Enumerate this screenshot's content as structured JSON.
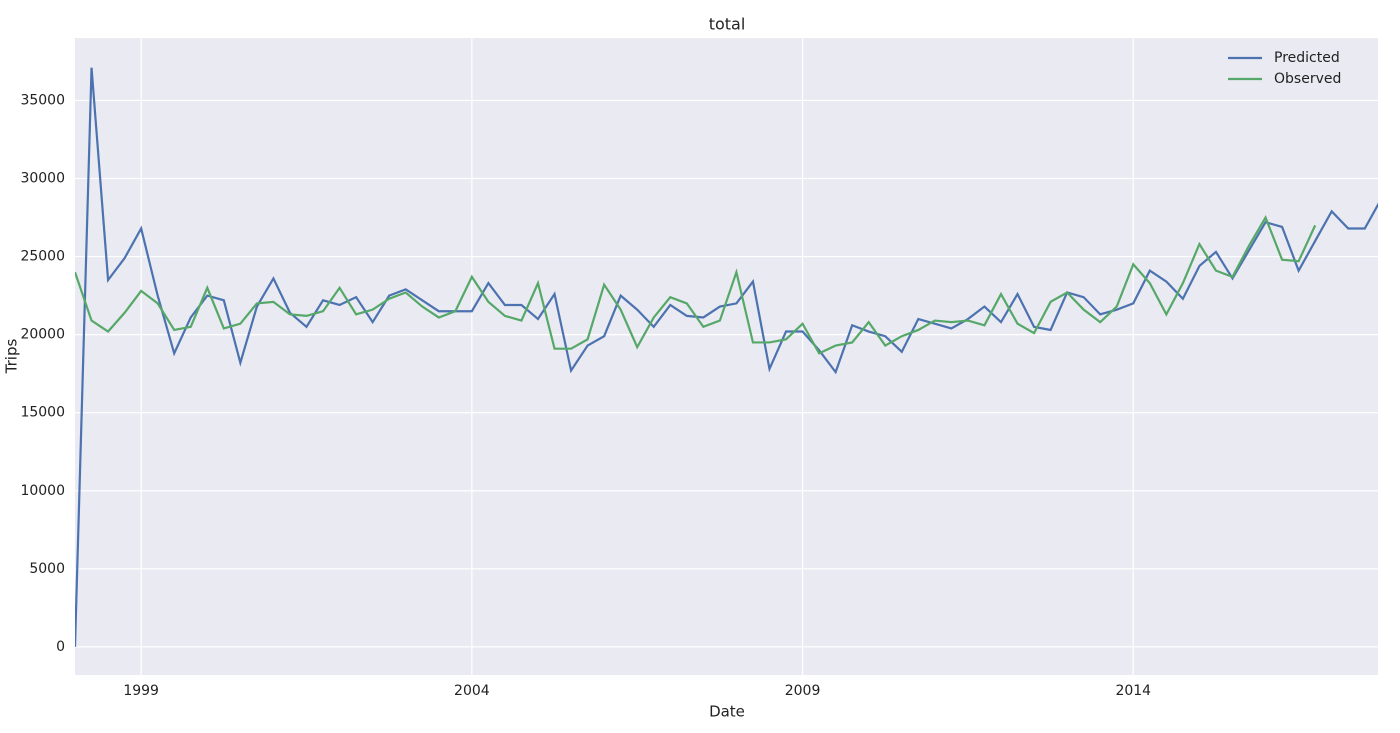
{
  "chart_data": {
    "type": "line",
    "title": "total",
    "xlabel": "Date",
    "ylabel": "Trips",
    "x": [
      1998,
      1998.25,
      1998.5,
      1998.75,
      1999,
      1999.25,
      1999.5,
      1999.75,
      2000,
      2000.25,
      2000.5,
      2000.75,
      2001,
      2001.25,
      2001.5,
      2001.75,
      2002,
      2002.25,
      2002.5,
      2002.75,
      2003,
      2003.25,
      2003.5,
      2003.75,
      2004,
      2004.25,
      2004.5,
      2004.75,
      2005,
      2005.25,
      2005.5,
      2005.75,
      2006,
      2006.25,
      2006.5,
      2006.75,
      2007,
      2007.25,
      2007.5,
      2007.75,
      2008,
      2008.25,
      2008.5,
      2008.75,
      2009,
      2009.25,
      2009.5,
      2009.75,
      2010,
      2010.25,
      2010.5,
      2010.75,
      2011,
      2011.25,
      2011.5,
      2011.75,
      2012,
      2012.25,
      2012.5,
      2012.75,
      2013,
      2013.25,
      2013.5,
      2013.75,
      2014,
      2014.25,
      2014.5,
      2014.75,
      2015,
      2015.25,
      2015.5,
      2015.75,
      2016,
      2016.25,
      2016.5,
      2016.75,
      2017,
      2017.25,
      2017.5,
      2017.75
    ],
    "series": [
      {
        "name": "Predicted",
        "color": "#4c72b0",
        "values": [
          0,
          37100,
          23500,
          24900,
          26800,
          22500,
          18800,
          21100,
          22500,
          22200,
          18200,
          21800,
          23600,
          21400,
          20500,
          22200,
          21900,
          22400,
          20800,
          22500,
          22900,
          22200,
          21500,
          21500,
          21500,
          23300,
          21900,
          21900,
          21000,
          22600,
          17700,
          19300,
          19900,
          22500,
          21600,
          20500,
          21900,
          21200,
          21100,
          21800,
          22000,
          23400,
          17800,
          20200,
          20200,
          19000,
          17600,
          20600,
          20200,
          19900,
          18900,
          21000,
          20700,
          20400,
          21000,
          21800,
          20800,
          22600,
          20500,
          20300,
          22700,
          22400,
          21300,
          21600,
          22000,
          24100,
          23400,
          22300,
          24400,
          25300,
          23600,
          25400,
          27200,
          26900,
          24100,
          26000,
          27900,
          26800,
          26800,
          28700
        ]
      },
      {
        "name": "Observed",
        "color": "#55a868",
        "values": [
          24000,
          20900,
          20200,
          21400,
          22800,
          22000,
          20300,
          20500,
          23000,
          20400,
          20700,
          22000,
          22100,
          21300,
          21200,
          21500,
          23000,
          21300,
          21600,
          22300,
          22700,
          21800,
          21100,
          21500,
          23700,
          22100,
          21200,
          20900,
          23300,
          19100,
          19100,
          19700,
          23200,
          21600,
          19200,
          21100,
          22400,
          22000,
          20500,
          20900,
          24000,
          19500,
          19500,
          19700,
          20700,
          18800,
          19300,
          19500,
          20800,
          19300,
          19900,
          20300,
          20900,
          20800,
          20900,
          20600,
          22600,
          20700,
          20100,
          22100,
          22700,
          21600,
          20800,
          21800,
          24500,
          23300,
          21300,
          23300,
          25800,
          24100,
          23700,
          25700,
          27500,
          24800,
          24700,
          27000,
          null,
          null,
          null,
          null
        ]
      }
    ],
    "xlim": [
      1998,
      2017.7
    ],
    "xticks": [
      1999,
      2004,
      2009,
      2014
    ],
    "ylim": [
      -1800,
      39000
    ],
    "yticks": [
      0,
      5000,
      10000,
      15000,
      20000,
      25000,
      30000,
      35000
    ],
    "grid": true,
    "legend": "upper right"
  }
}
